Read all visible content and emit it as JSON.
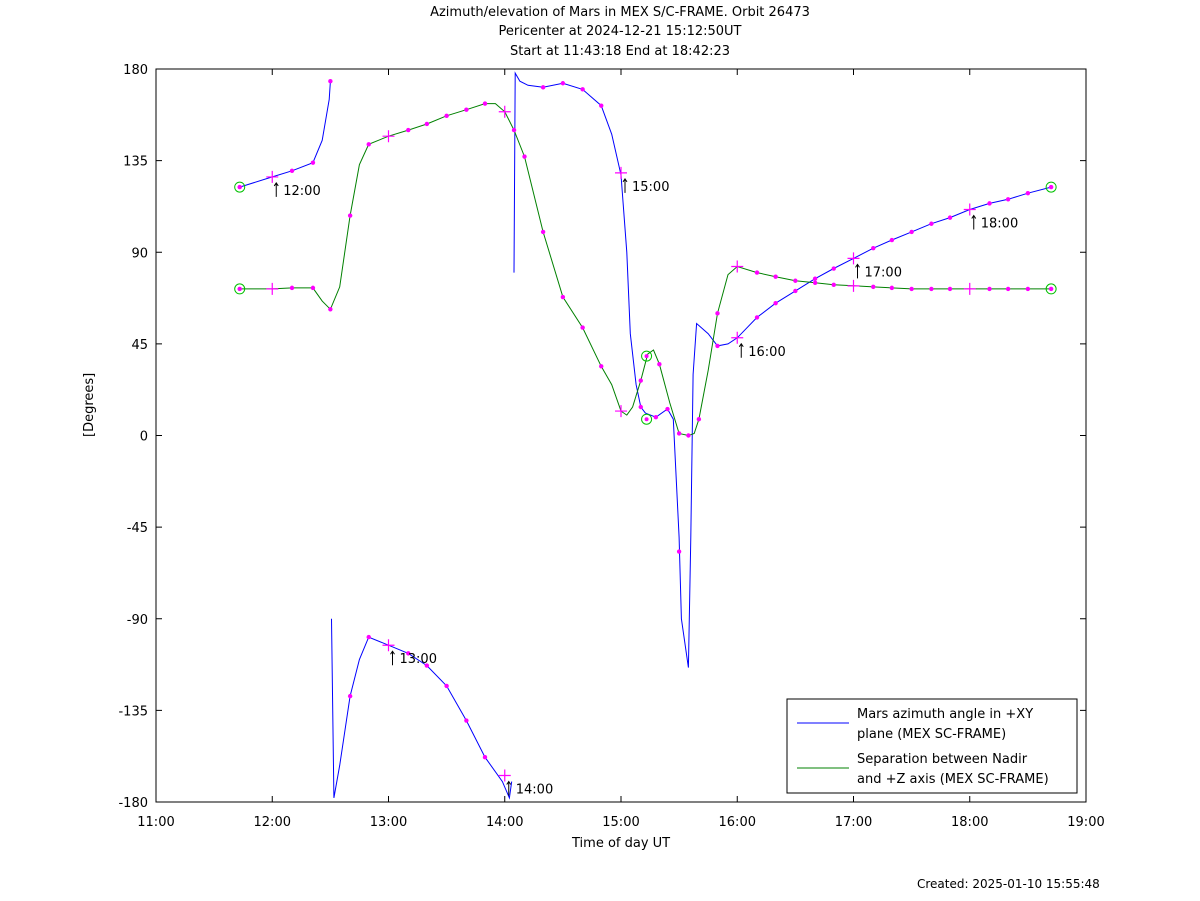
{
  "chart_data": {
    "type": "line",
    "title": [
      "Azimuth/elevation of Mars in MEX S/C-FRAME.  Orbit 26473",
      "Pericenter at 2024-12-21 15:12:50UT",
      "Start at 11:43:18 End at 18:42:23"
    ],
    "xlabel": "Time of day UT",
    "ylabel": "[Degrees]",
    "xlim": [
      11.0,
      19.0
    ],
    "ylim": [
      -180,
      180
    ],
    "x_ticks": [
      11,
      12,
      13,
      14,
      15,
      16,
      17,
      18,
      19
    ],
    "x_tick_labels": [
      "11:00",
      "12:00",
      "13:00",
      "14:00",
      "15:00",
      "16:00",
      "17:00",
      "18:00",
      "19:00"
    ],
    "y_ticks": [
      180,
      135,
      90,
      45,
      0,
      -45,
      -90,
      -135,
      -180
    ],
    "y_tick_labels": [
      "180",
      "135",
      "90",
      "45",
      "0",
      "-45",
      "-90",
      "-135",
      "-180"
    ],
    "grid": false,
    "legend_position": "bottom-right",
    "series": [
      {
        "name": "Mars azimuth angle in +XY plane (MEX SC-FRAME)",
        "legend_lines": [
          "Mars azimuth angle in +XY",
          "plane (MEX SC-FRAME)"
        ],
        "color": "#0000ff",
        "segments": [
          [
            [
              11.72,
              122
            ],
            [
              12.0,
              127
            ],
            [
              12.17,
              130
            ],
            [
              12.35,
              134
            ],
            [
              12.43,
              145
            ],
            [
              12.49,
              165
            ],
            [
              12.5,
              174
            ]
          ],
          [
            [
              12.51,
              -90
            ],
            [
              12.53,
              -178
            ],
            [
              12.58,
              -162
            ],
            [
              12.67,
              -128
            ],
            [
              12.75,
              -110
            ],
            [
              12.83,
              -99
            ],
            [
              13.0,
              -103
            ],
            [
              13.17,
              -107
            ],
            [
              13.33,
              -113
            ],
            [
              13.5,
              -123
            ],
            [
              13.67,
              -140
            ],
            [
              13.83,
              -158
            ],
            [
              13.98,
              -170
            ],
            [
              14.04,
              -178
            ],
            [
              14.06,
              -170
            ]
          ],
          [
            [
              14.08,
              80
            ],
            [
              14.09,
              178
            ],
            [
              14.13,
              174
            ],
            [
              14.2,
              172
            ],
            [
              14.33,
              171
            ],
            [
              14.5,
              173
            ],
            [
              14.67,
              170
            ],
            [
              14.83,
              162
            ],
            [
              14.92,
              148
            ],
            [
              15.0,
              128
            ],
            [
              15.05,
              90
            ],
            [
              15.08,
              50
            ],
            [
              15.13,
              25
            ],
            [
              15.17,
              14
            ],
            [
              15.21,
              11
            ],
            [
              15.3,
              9
            ],
            [
              15.4,
              13
            ],
            [
              15.45,
              8
            ],
            [
              15.5,
              -50
            ],
            [
              15.52,
              -90
            ],
            [
              15.58,
              -114
            ],
            [
              15.6,
              -50
            ],
            [
              15.62,
              30
            ],
            [
              15.65,
              55
            ],
            [
              15.75,
              50
            ],
            [
              15.83,
              44
            ],
            [
              15.92,
              45
            ],
            [
              16.0,
              48
            ],
            [
              16.17,
              58
            ],
            [
              16.33,
              65
            ],
            [
              16.5,
              71
            ],
            [
              16.67,
              77
            ],
            [
              16.83,
              82
            ],
            [
              17.0,
              87
            ],
            [
              17.17,
              92
            ],
            [
              17.33,
              96
            ],
            [
              17.5,
              100
            ],
            [
              17.67,
              104
            ],
            [
              17.83,
              107
            ],
            [
              18.0,
              111
            ],
            [
              18.17,
              114
            ],
            [
              18.33,
              116
            ],
            [
              18.5,
              119
            ],
            [
              18.7,
              122
            ]
          ]
        ]
      },
      {
        "name": "Separation between Nadir and +Z axis (MEX SC-FRAME)",
        "legend_lines": [
          "Separation between Nadir",
          "and +Z axis (MEX SC-FRAME)"
        ],
        "color": "#008000",
        "points": [
          [
            11.72,
            72
          ],
          [
            12.0,
            72
          ],
          [
            12.17,
            72.5
          ],
          [
            12.35,
            72.5
          ],
          [
            12.43,
            66
          ],
          [
            12.5,
            62
          ],
          [
            12.58,
            73
          ],
          [
            12.67,
            108
          ],
          [
            12.75,
            133
          ],
          [
            12.83,
            143
          ],
          [
            13.0,
            147
          ],
          [
            13.17,
            150
          ],
          [
            13.33,
            153
          ],
          [
            13.5,
            157
          ],
          [
            13.67,
            160
          ],
          [
            13.83,
            163
          ],
          [
            13.92,
            163
          ],
          [
            14.0,
            159
          ],
          [
            14.08,
            150
          ],
          [
            14.17,
            137
          ],
          [
            14.33,
            100
          ],
          [
            14.5,
            68
          ],
          [
            14.67,
            53
          ],
          [
            14.83,
            34
          ],
          [
            14.92,
            25
          ],
          [
            15.0,
            12
          ],
          [
            15.05,
            10
          ],
          [
            15.1,
            14
          ],
          [
            15.17,
            27
          ],
          [
            15.23,
            40
          ],
          [
            15.28,
            42
          ],
          [
            15.33,
            35
          ],
          [
            15.42,
            16
          ],
          [
            15.5,
            1
          ],
          [
            15.58,
            0
          ],
          [
            15.63,
            1
          ],
          [
            15.67,
            8
          ],
          [
            15.75,
            32
          ],
          [
            15.83,
            60
          ],
          [
            15.92,
            79
          ],
          [
            16.0,
            83
          ],
          [
            16.17,
            80
          ],
          [
            16.33,
            78
          ],
          [
            16.5,
            76
          ],
          [
            16.67,
            75
          ],
          [
            16.83,
            74
          ],
          [
            17.0,
            73.5
          ],
          [
            17.17,
            73
          ],
          [
            17.33,
            72.5
          ],
          [
            17.5,
            72
          ],
          [
            17.67,
            72
          ],
          [
            17.83,
            72
          ],
          [
            18.0,
            72
          ],
          [
            18.17,
            72
          ],
          [
            18.33,
            72
          ],
          [
            18.5,
            72
          ],
          [
            18.7,
            72
          ]
        ]
      }
    ],
    "markers": {
      "color": "#ff00ff",
      "dots": [
        [
          11.72,
          122
        ],
        [
          12.17,
          130
        ],
        [
          12.35,
          134
        ],
        [
          12.5,
          174
        ],
        [
          12.67,
          -128
        ],
        [
          12.83,
          -99
        ],
        [
          13.17,
          -107
        ],
        [
          13.33,
          -113
        ],
        [
          13.5,
          -123
        ],
        [
          13.67,
          -140
        ],
        [
          13.83,
          -158
        ],
        [
          14.33,
          171
        ],
        [
          14.5,
          173
        ],
        [
          14.67,
          170
        ],
        [
          14.83,
          162
        ],
        [
          15.17,
          14
        ],
        [
          15.3,
          9
        ],
        [
          15.4,
          13
        ],
        [
          15.5,
          -57
        ],
        [
          15.58,
          0
        ],
        [
          15.67,
          8
        ],
        [
          15.83,
          44
        ],
        [
          16.17,
          58
        ],
        [
          16.33,
          65
        ],
        [
          16.5,
          71
        ],
        [
          16.67,
          77
        ],
        [
          16.83,
          82
        ],
        [
          17.17,
          92
        ],
        [
          17.33,
          96
        ],
        [
          17.5,
          100
        ],
        [
          17.67,
          104
        ],
        [
          17.83,
          107
        ],
        [
          18.17,
          114
        ],
        [
          18.33,
          116
        ],
        [
          18.5,
          119
        ],
        [
          18.7,
          122
        ],
        [
          11.72,
          72
        ],
        [
          12.17,
          72.5
        ],
        [
          12.35,
          72.5
        ],
        [
          12.5,
          62
        ],
        [
          12.67,
          108
        ],
        [
          12.83,
          143
        ],
        [
          13.17,
          150
        ],
        [
          13.33,
          153
        ],
        [
          13.5,
          157
        ],
        [
          13.67,
          160
        ],
        [
          13.83,
          163
        ],
        [
          14.08,
          150
        ],
        [
          14.17,
          137
        ],
        [
          14.33,
          100
        ],
        [
          14.5,
          68
        ],
        [
          14.67,
          53
        ],
        [
          14.83,
          34
        ],
        [
          15.17,
          27
        ],
        [
          15.33,
          35
        ],
        [
          15.5,
          1
        ],
        [
          15.83,
          60
        ],
        [
          16.17,
          80
        ],
        [
          16.33,
          78
        ],
        [
          16.5,
          76
        ],
        [
          16.67,
          75
        ],
        [
          16.83,
          74
        ],
        [
          17.17,
          73
        ],
        [
          17.33,
          72.5
        ],
        [
          17.5,
          72
        ],
        [
          17.67,
          72
        ],
        [
          17.83,
          72
        ],
        [
          18.17,
          72
        ],
        [
          18.33,
          72
        ],
        [
          18.5,
          72
        ],
        [
          18.7,
          72
        ]
      ],
      "crosses": [
        [
          12.0,
          127
        ],
        [
          13.0,
          -103
        ],
        [
          14.0,
          -167
        ],
        [
          15.0,
          129
        ],
        [
          16.0,
          48
        ],
        [
          17.0,
          87
        ],
        [
          18.0,
          111
        ],
        [
          12.0,
          72
        ],
        [
          13.0,
          147
        ],
        [
          14.0,
          159
        ],
        [
          15.0,
          12
        ],
        [
          16.0,
          83
        ],
        [
          17.0,
          73.5
        ],
        [
          18.0,
          72
        ]
      ],
      "circles_color": "#00c000",
      "circles": [
        [
          11.72,
          122
        ],
        [
          11.72,
          72
        ],
        [
          18.7,
          122
        ],
        [
          18.7,
          72
        ],
        [
          15.22,
          39
        ],
        [
          15.22,
          8
        ]
      ]
    },
    "time_annotations": [
      {
        "x": 12.0,
        "y": 127,
        "label": "12:00"
      },
      {
        "x": 13.0,
        "y": -103,
        "label": "13:00"
      },
      {
        "x": 14.0,
        "y": -167,
        "label": "14:00"
      },
      {
        "x": 15.0,
        "y": 129,
        "label": "15:00"
      },
      {
        "x": 16.0,
        "y": 48,
        "label": "16:00"
      },
      {
        "x": 17.0,
        "y": 87,
        "label": "17:00"
      },
      {
        "x": 18.0,
        "y": 111,
        "label": "18:00"
      }
    ]
  },
  "footer": {
    "created": "Created: 2025-01-10 15:55:48"
  }
}
